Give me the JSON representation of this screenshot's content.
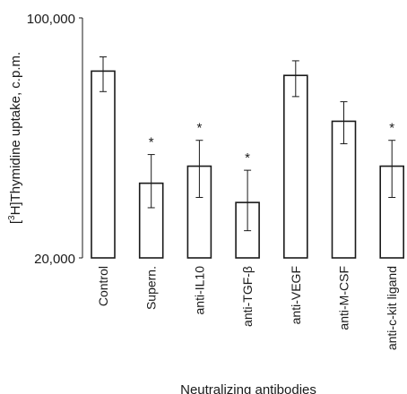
{
  "chart_data": {
    "type": "bar",
    "title": "",
    "xlabel": "Neutralizing antibodies",
    "ylabel_prefix": "[",
    "ylabel_sup": "3",
    "ylabel_suffix": "H]Thymidine uptake, c.p.m.",
    "ylim": [
      20000,
      100000
    ],
    "y_ticks": [
      "20,000",
      "100,000"
    ],
    "grid": false,
    "legend": "none",
    "categories": [
      "Control",
      "Supern.",
      "anti-IL10",
      "anti-TGF-β",
      "anti-VEGF",
      "anti-M-CSF",
      "anti-c-kit ligand"
    ],
    "values": [
      70000,
      33000,
      37000,
      29000,
      68000,
      50000,
      37000
    ],
    "error_low": [
      61000,
      28000,
      30000,
      24000,
      59000,
      43000,
      30000
    ],
    "error_high": [
      77000,
      40000,
      44000,
      36000,
      75000,
      57000,
      44000
    ],
    "significant": [
      false,
      true,
      true,
      true,
      false,
      false,
      true
    ],
    "significance_marker": "*"
  }
}
